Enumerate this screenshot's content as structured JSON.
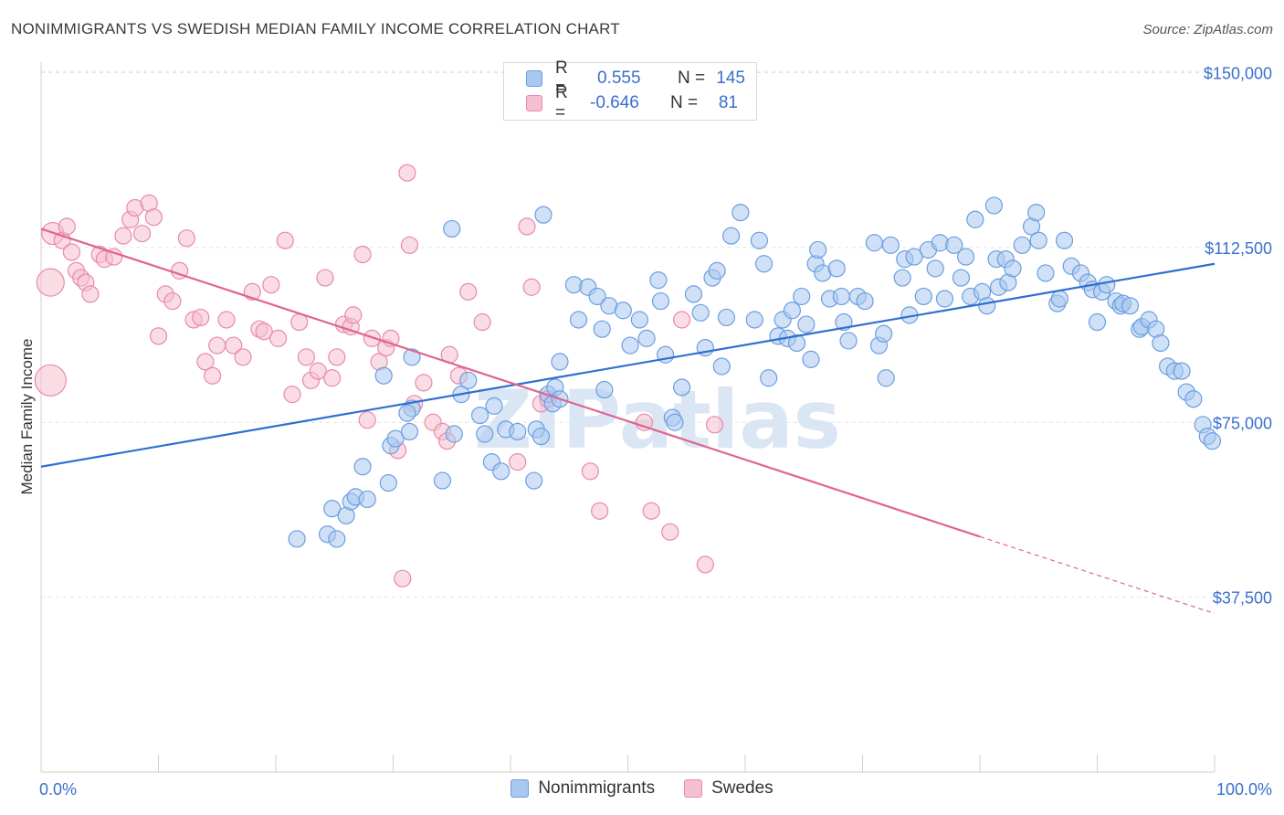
{
  "title": "NONIMMIGRANTS VS SWEDISH MEDIAN FAMILY INCOME CORRELATION CHART",
  "source": "Source: ZipAtlas.com",
  "watermark": "ZIPatlas",
  "legend": {
    "rows": [
      {
        "r_label": "R =",
        "r_value": "0.555",
        "n_label": "N =",
        "n_value": "145"
      },
      {
        "r_label": "R =",
        "r_value": "-0.646",
        "n_label": "N =",
        "n_value": "81"
      }
    ]
  },
  "bottom_legend": [
    "Nonimmigrants",
    "Swedes"
  ],
  "colors": {
    "blue_fill": "#a9c8f0",
    "blue_stroke": "#6b9ee0",
    "blue_line": "#2f6fcf",
    "pink_fill": "#f6bfd0",
    "pink_stroke": "#e98aa8",
    "pink_line": "#e0648f",
    "axis_text": "#3a6fce",
    "grid": "#e2e2e2"
  },
  "chart_data": {
    "type": "scatter",
    "title": "NONIMMIGRANTS VS SWEDISH MEDIAN FAMILY INCOME CORRELATION CHART",
    "xlabel": "",
    "ylabel": "Median Family Income",
    "xlim": [
      0,
      100
    ],
    "ylim": [
      0,
      160000
    ],
    "x_tick_labels": [
      "0.0%",
      "100.0%"
    ],
    "y_ticks": [
      37500,
      75000,
      112500,
      150000
    ],
    "y_tick_labels": [
      "$37,500",
      "$75,000",
      "$112,500",
      "$150,000"
    ],
    "grid": true,
    "legend_position": "top-center",
    "series": [
      {
        "name": "Nonimmigrants",
        "r": 0.555,
        "n": 145,
        "trend": {
          "x0": 0,
          "y0": 65500,
          "x1": 100,
          "y1": 109000
        },
        "points": [
          [
            21.8,
            50000
          ],
          [
            24.4,
            51000
          ],
          [
            25.2,
            50000
          ],
          [
            24.8,
            56500
          ],
          [
            26.0,
            55000
          ],
          [
            26.4,
            58000
          ],
          [
            26.8,
            59000
          ],
          [
            27.8,
            58500
          ],
          [
            27.4,
            65500
          ],
          [
            29.6,
            62000
          ],
          [
            29.2,
            85000
          ],
          [
            29.8,
            70000
          ],
          [
            30.2,
            71500
          ],
          [
            31.4,
            73000
          ],
          [
            31.6,
            78000
          ],
          [
            31.2,
            77000
          ],
          [
            34.2,
            62500
          ],
          [
            35.2,
            72500
          ],
          [
            35.8,
            81000
          ],
          [
            36.4,
            84000
          ],
          [
            37.4,
            76500
          ],
          [
            37.8,
            72500
          ],
          [
            38.4,
            66500
          ],
          [
            38.6,
            78500
          ],
          [
            39.2,
            64500
          ],
          [
            39.6,
            73500
          ],
          [
            40.6,
            73000
          ],
          [
            42.0,
            62500
          ],
          [
            42.2,
            73500
          ],
          [
            42.6,
            72000
          ],
          [
            43.2,
            81000
          ],
          [
            43.6,
            79000
          ],
          [
            43.8,
            82500
          ],
          [
            42.8,
            119500
          ],
          [
            44.2,
            80000
          ],
          [
            45.4,
            104500
          ],
          [
            45.8,
            97000
          ],
          [
            46.6,
            104000
          ],
          [
            47.4,
            102000
          ],
          [
            47.8,
            95000
          ],
          [
            48.0,
            82000
          ],
          [
            48.4,
            100000
          ],
          [
            49.6,
            99000
          ],
          [
            50.2,
            91500
          ],
          [
            51.0,
            97000
          ],
          [
            51.6,
            93000
          ],
          [
            52.6,
            105500
          ],
          [
            52.8,
            101000
          ],
          [
            53.2,
            89500
          ],
          [
            53.8,
            76000
          ],
          [
            54.0,
            75000
          ],
          [
            54.6,
            82500
          ],
          [
            55.6,
            102500
          ],
          [
            56.2,
            98500
          ],
          [
            56.6,
            91000
          ],
          [
            57.2,
            106000
          ],
          [
            57.6,
            107500
          ],
          [
            58.4,
            97500
          ],
          [
            58.8,
            115000
          ],
          [
            59.6,
            120000
          ],
          [
            60.8,
            97000
          ],
          [
            61.2,
            114000
          ],
          [
            61.6,
            109000
          ],
          [
            62.0,
            84500
          ],
          [
            62.8,
            93500
          ],
          [
            63.6,
            93000
          ],
          [
            63.2,
            97000
          ],
          [
            64.0,
            99000
          ],
          [
            64.4,
            92000
          ],
          [
            64.8,
            102000
          ],
          [
            65.2,
            96000
          ],
          [
            65.6,
            88500
          ],
          [
            66.0,
            109000
          ],
          [
            66.6,
            107000
          ],
          [
            66.2,
            112000
          ],
          [
            67.2,
            101500
          ],
          [
            67.8,
            108000
          ],
          [
            68.4,
            96500
          ],
          [
            68.2,
            102000
          ],
          [
            68.8,
            92500
          ],
          [
            69.6,
            102000
          ],
          [
            70.2,
            101000
          ],
          [
            71.0,
            113500
          ],
          [
            71.4,
            91500
          ],
          [
            71.8,
            94000
          ],
          [
            72.0,
            84500
          ],
          [
            72.4,
            113000
          ],
          [
            73.4,
            106000
          ],
          [
            73.6,
            110000
          ],
          [
            74.0,
            98000
          ],
          [
            74.4,
            110500
          ],
          [
            75.2,
            102000
          ],
          [
            75.6,
            112000
          ],
          [
            76.2,
            108000
          ],
          [
            76.6,
            113500
          ],
          [
            77.0,
            101500
          ],
          [
            77.8,
            113000
          ],
          [
            78.4,
            106000
          ],
          [
            78.8,
            110500
          ],
          [
            79.2,
            102000
          ],
          [
            79.6,
            118500
          ],
          [
            80.2,
            103000
          ],
          [
            80.6,
            100000
          ],
          [
            81.2,
            121500
          ],
          [
            81.4,
            110000
          ],
          [
            81.6,
            104000
          ],
          [
            82.2,
            110000
          ],
          [
            82.4,
            105000
          ],
          [
            82.8,
            108000
          ],
          [
            83.6,
            113000
          ],
          [
            84.4,
            117000
          ],
          [
            84.8,
            120000
          ],
          [
            85.0,
            114000
          ],
          [
            85.6,
            107000
          ],
          [
            86.6,
            100500
          ],
          [
            86.8,
            101500
          ],
          [
            87.2,
            114000
          ],
          [
            87.8,
            108500
          ],
          [
            88.6,
            107000
          ],
          [
            89.2,
            105000
          ],
          [
            89.6,
            103500
          ],
          [
            90.0,
            96500
          ],
          [
            90.4,
            103000
          ],
          [
            90.8,
            104500
          ],
          [
            91.6,
            101000
          ],
          [
            92.0,
            100000
          ],
          [
            92.2,
            100500
          ],
          [
            92.8,
            100000
          ],
          [
            93.6,
            95000
          ],
          [
            93.8,
            95500
          ],
          [
            94.4,
            97000
          ],
          [
            95.0,
            95000
          ],
          [
            95.4,
            92000
          ],
          [
            96.0,
            87000
          ],
          [
            96.6,
            86000
          ],
          [
            97.2,
            86000
          ],
          [
            97.6,
            81500
          ],
          [
            98.2,
            80000
          ],
          [
            99.0,
            74500
          ],
          [
            99.4,
            72000
          ],
          [
            99.8,
            71000
          ],
          [
            31.6,
            89000
          ],
          [
            35.0,
            116500
          ],
          [
            44.2,
            88000
          ],
          [
            58.0,
            87000
          ]
        ]
      },
      {
        "name": "Swedes",
        "r": -0.646,
        "n": 81,
        "trend": {
          "x0": 0,
          "y0": 116500,
          "x1": 80,
          "y1": 50500,
          "dash_to_x": 100,
          "dash_to_y": 34000
        },
        "points": [
          [
            0.8,
            84000
          ],
          [
            0.8,
            105000
          ],
          [
            1.0,
            115500
          ],
          [
            1.8,
            114000
          ],
          [
            2.2,
            117000
          ],
          [
            2.6,
            111500
          ],
          [
            3.0,
            107500
          ],
          [
            3.4,
            106000
          ],
          [
            3.8,
            105000
          ],
          [
            4.2,
            102500
          ],
          [
            5.0,
            111000
          ],
          [
            5.4,
            110000
          ],
          [
            6.2,
            110500
          ],
          [
            7.0,
            115000
          ],
          [
            7.6,
            118500
          ],
          [
            8.0,
            121000
          ],
          [
            8.6,
            115500
          ],
          [
            9.2,
            122000
          ],
          [
            9.6,
            119000
          ],
          [
            10.0,
            93500
          ],
          [
            10.6,
            102500
          ],
          [
            11.2,
            101000
          ],
          [
            11.8,
            107500
          ],
          [
            12.4,
            114500
          ],
          [
            13.0,
            97000
          ],
          [
            13.6,
            97500
          ],
          [
            14.0,
            88000
          ],
          [
            14.6,
            85000
          ],
          [
            15.0,
            91500
          ],
          [
            15.8,
            97000
          ],
          [
            16.4,
            91500
          ],
          [
            17.2,
            89000
          ],
          [
            18.0,
            103000
          ],
          [
            18.6,
            95000
          ],
          [
            19.0,
            94500
          ],
          [
            19.6,
            104500
          ],
          [
            20.2,
            93000
          ],
          [
            20.8,
            114000
          ],
          [
            21.4,
            81000
          ],
          [
            22.0,
            96500
          ],
          [
            22.6,
            89000
          ],
          [
            23.0,
            84000
          ],
          [
            23.6,
            86000
          ],
          [
            24.2,
            106000
          ],
          [
            24.8,
            84500
          ],
          [
            25.2,
            89000
          ],
          [
            25.8,
            96000
          ],
          [
            26.4,
            95500
          ],
          [
            26.6,
            98000
          ],
          [
            27.4,
            111000
          ],
          [
            27.8,
            75500
          ],
          [
            28.2,
            93000
          ],
          [
            28.8,
            88000
          ],
          [
            29.4,
            91000
          ],
          [
            29.8,
            93000
          ],
          [
            30.4,
            69000
          ],
          [
            30.8,
            41500
          ],
          [
            31.2,
            128500
          ],
          [
            31.4,
            113000
          ],
          [
            31.8,
            79000
          ],
          [
            32.6,
            83500
          ],
          [
            33.4,
            75000
          ],
          [
            34.2,
            73000
          ],
          [
            34.8,
            89500
          ],
          [
            35.6,
            85000
          ],
          [
            36.4,
            103000
          ],
          [
            37.6,
            96500
          ],
          [
            40.6,
            66500
          ],
          [
            41.4,
            117000
          ],
          [
            41.8,
            104000
          ],
          [
            42.6,
            79000
          ],
          [
            43.2,
            80000
          ],
          [
            46.8,
            64500
          ],
          [
            47.6,
            56000
          ],
          [
            51.4,
            75000
          ],
          [
            52.0,
            56000
          ],
          [
            53.6,
            51500
          ],
          [
            54.6,
            97000
          ],
          [
            56.6,
            44500
          ],
          [
            57.4,
            74500
          ],
          [
            34.6,
            71000
          ]
        ]
      }
    ]
  }
}
